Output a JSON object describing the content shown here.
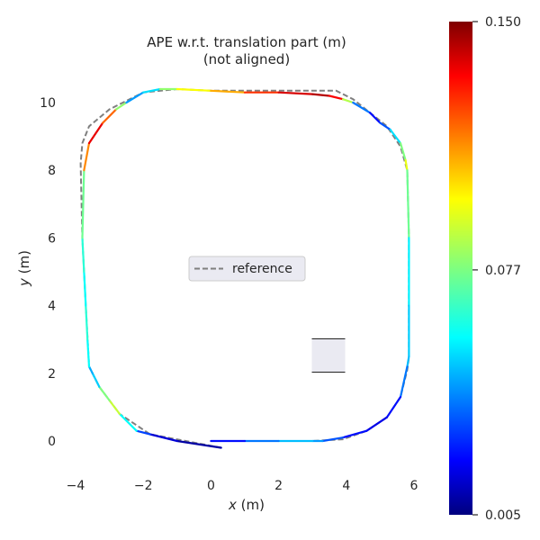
{
  "chart_data": {
    "type": "line",
    "title": "APE w.r.t. translation part (m)",
    "subtitle": "(not aligned)",
    "xlabel_var": "x",
    "xlabel_unit": " (m)",
    "ylabel_var": "y",
    "ylabel_unit": " (m)",
    "xlim": [
      -4.0,
      6.2
    ],
    "ylim": [
      -1.0,
      11.0
    ],
    "xticks": [
      -4,
      -2,
      0,
      2,
      4,
      6
    ],
    "xtick_labels": [
      "−4",
      "−2",
      "0",
      "2",
      "4",
      "6"
    ],
    "yticks": [
      0,
      2,
      4,
      6,
      8,
      10
    ],
    "ytick_labels": [
      "0",
      "2",
      "4",
      "6",
      "8",
      "10"
    ],
    "grid": false,
    "legend": {
      "placement": "center",
      "entries": [
        "reference"
      ]
    },
    "colorbar": {
      "colormap": "jet",
      "min": 0.005,
      "max": 0.15,
      "ticks": [
        0.005,
        0.077,
        0.15
      ],
      "tick_labels": [
        "0.005",
        "0.077",
        "0.150"
      ]
    },
    "reference": {
      "name": "reference",
      "color": "#7f7f7f",
      "style": "dashed",
      "x": [
        0.3,
        -1.8,
        -2.7,
        -3.3,
        -3.6,
        -3.7,
        -3.8,
        -3.85,
        -3.8,
        -3.6,
        -3.0,
        -2.0,
        -1.0,
        0.0,
        1.0,
        2.0,
        3.0,
        3.7,
        4.2,
        4.7,
        5.2,
        5.6,
        5.8,
        5.85,
        5.85,
        5.85,
        5.8,
        5.6,
        5.2,
        4.6,
        3.9,
        3.0,
        2.0,
        1.0,
        0.0
      ],
      "y": [
        -0.2,
        0.2,
        0.8,
        1.6,
        2.2,
        4.0,
        6.0,
        8.2,
        8.8,
        9.3,
        9.8,
        10.3,
        10.4,
        10.35,
        10.35,
        10.35,
        10.35,
        10.35,
        10.1,
        9.7,
        9.3,
        8.7,
        8.0,
        6.0,
        4.0,
        2.5,
        2.1,
        1.3,
        0.7,
        0.3,
        0.05,
        0.0,
        0.0,
        0.0,
        0.0
      ]
    },
    "estimate": {
      "x": [
        0.3,
        -1.0,
        -1.8,
        -2.2,
        -2.7,
        -3.0,
        -3.3,
        -3.5,
        -3.6,
        -3.65,
        -3.7,
        -3.75,
        -3.8,
        -3.75,
        -3.6,
        -3.2,
        -2.8,
        -2.5,
        -2.0,
        -1.5,
        -1.0,
        0.0,
        1.0,
        2.0,
        3.0,
        3.5,
        3.9,
        4.2,
        4.7,
        5.0,
        5.3,
        5.6,
        5.75,
        5.8,
        5.85,
        5.85,
        5.85,
        5.8,
        5.6,
        5.2,
        4.6,
        3.9,
        3.3,
        3.0,
        2.0,
        1.0,
        0.0
      ],
      "y": [
        -0.2,
        0.0,
        0.2,
        0.3,
        0.8,
        1.2,
        1.6,
        2.0,
        2.2,
        3.0,
        4.0,
        5.0,
        6.0,
        8.0,
        8.8,
        9.4,
        9.8,
        10.0,
        10.3,
        10.4,
        10.4,
        10.35,
        10.3,
        10.3,
        10.25,
        10.2,
        10.1,
        10.0,
        9.7,
        9.4,
        9.2,
        8.8,
        8.3,
        8.0,
        6.0,
        4.0,
        2.5,
        2.2,
        1.3,
        0.7,
        0.3,
        0.1,
        0.0,
        0.0,
        0.0,
        0.0,
        0.0
      ],
      "ape": [
        0.01,
        0.01,
        0.025,
        0.04,
        0.08,
        0.095,
        0.06,
        0.045,
        0.05,
        0.07,
        0.06,
        0.06,
        0.07,
        0.08,
        0.145,
        0.125,
        0.11,
        0.05,
        0.04,
        0.07,
        0.09,
        0.1,
        0.115,
        0.135,
        0.14,
        0.145,
        0.12,
        0.05,
        0.03,
        0.02,
        0.05,
        0.06,
        0.095,
        0.09,
        0.06,
        0.055,
        0.05,
        0.05,
        0.03,
        0.02,
        0.02,
        0.03,
        0.04,
        0.05,
        0.05,
        0.03,
        0.02
      ]
    }
  }
}
